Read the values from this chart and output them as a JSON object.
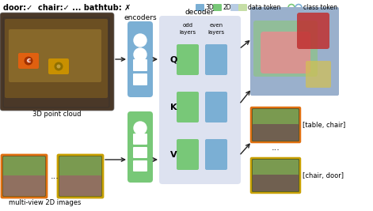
{
  "bg_color": "#ffffff",
  "title_text": "door:✓  chair:✓ ... bathtub: ✗",
  "encoders_label": "encoders",
  "decoder_label": "decoder",
  "qkv_labels": [
    "Q",
    "K",
    "V"
  ],
  "output_labels": [
    "[table, chair]",
    "[chair, door]"
  ],
  "point_cloud_label": "3D point cloud",
  "multiview_label": "multi-view 2D images",
  "encoder_3d_color": "#7bafd4",
  "encoder_2d_color": "#78c878",
  "decoder_bg_color": "#dde2f0",
  "decoder_odd_color": "#78c878",
  "decoder_even_color": "#7bafd4",
  "arrow_color": "#222222",
  "orange_border": "#e07010",
  "yellow_border": "#c8a000",
  "legend_3d_color": "#7bafd4",
  "legend_2d_color": "#78c878",
  "legend_dt1_color": "#b8cce4",
  "legend_dt2_color": "#c6dea6",
  "pc_bg": "#4a3828",
  "pc_mid": "#8B6010",
  "pc_dark": "#5a4010",
  "cam_orange": "#e06010",
  "cam_yellow": "#c89000",
  "mv_bg": "#3a5030",
  "mv_green": "#7a9a50",
  "mv_brown": "#907060",
  "seg_blue": "#9ab0cc",
  "seg_green": "#90c090",
  "seg_pink": "#e09090",
  "seg_red": "#c03030",
  "out_mv_green": "#7a9a50",
  "out_mv_brown": "#706050"
}
